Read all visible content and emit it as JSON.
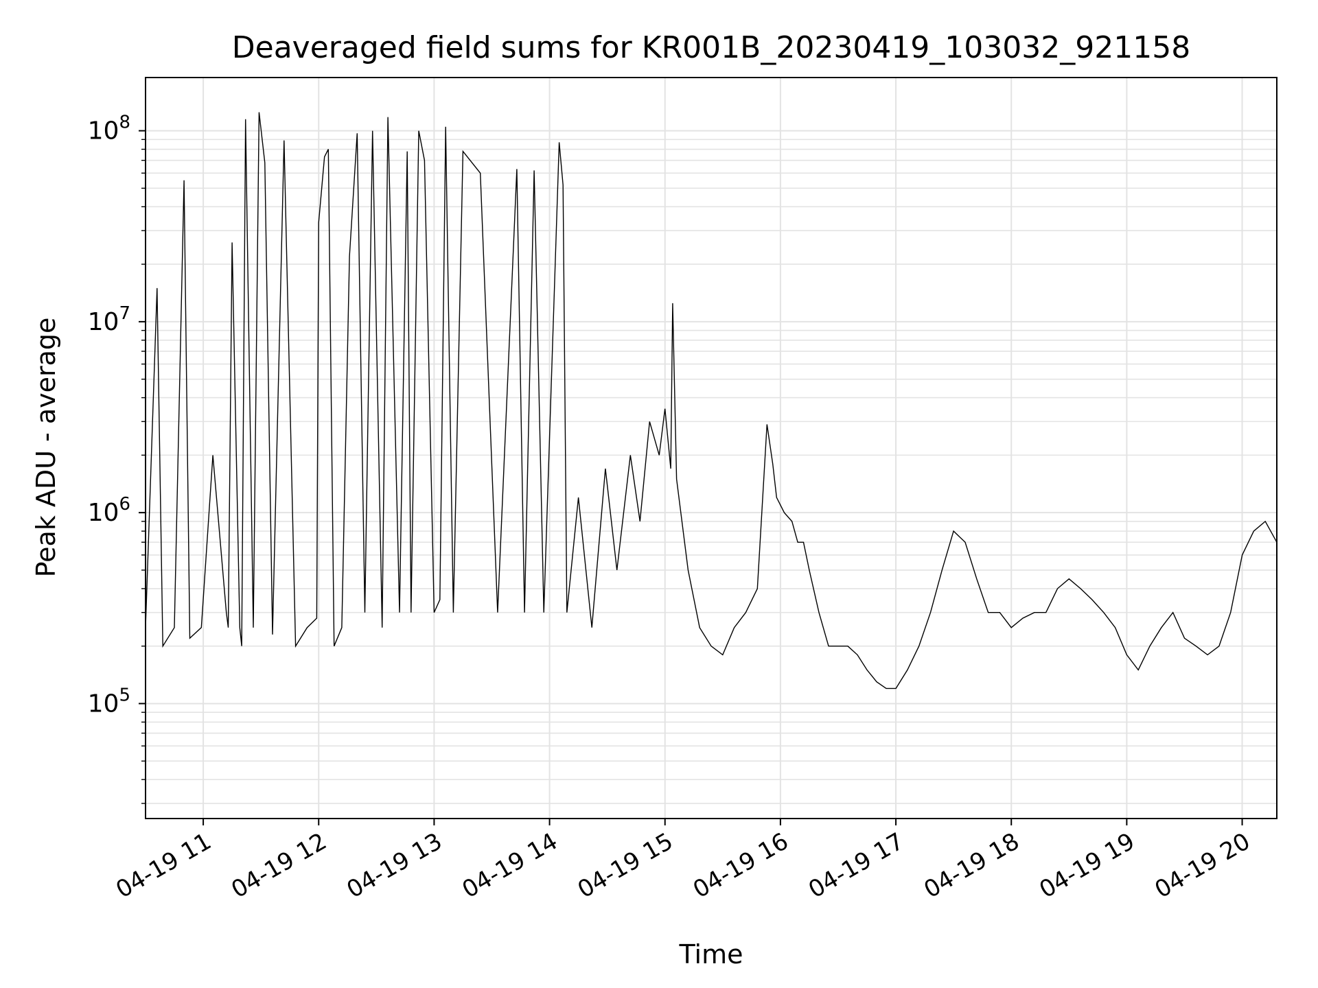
{
  "chart_data": {
    "type": "line",
    "title": "Deaveraged field sums for KR001B_20230419_103032_921158",
    "xlabel": "Time",
    "ylabel": "Peak ADU - average",
    "y_scale": "log",
    "grid": true,
    "legend": "none",
    "xlim": [
      "2023-04-19 10:30",
      "2023-04-19 20:18"
    ],
    "ylim": [
      25000,
      190000000
    ],
    "x_ticks": [
      "04-19 11",
      "04-19 12",
      "04-19 13",
      "04-19 14",
      "04-19 15",
      "04-19 16",
      "04-19 17",
      "04-19 18",
      "04-19 19",
      "04-19 20"
    ],
    "y_ticks": [
      {
        "base": "10",
        "exp": "5"
      },
      {
        "base": "10",
        "exp": "6"
      },
      {
        "base": "10",
        "exp": "7"
      },
      {
        "base": "10",
        "exp": "8"
      }
    ],
    "line_color": "#000000",
    "series": [
      {
        "x": [
          "2023-04-19 10:30",
          "2023-04-19 10:36",
          "2023-04-19 10:39",
          "2023-04-19 10:45",
          "2023-04-19 10:50",
          "2023-04-19 10:53",
          "2023-04-19 10:59",
          "2023-04-19 11:05",
          "2023-04-19 11:12",
          "2023-04-19 11:13",
          "2023-04-19 11:15",
          "2023-04-19 11:19",
          "2023-04-19 11:20",
          "2023-04-19 11:22",
          "2023-04-19 11:26",
          "2023-04-19 11:29",
          "2023-04-19 11:32",
          "2023-04-19 11:36",
          "2023-04-19 11:42",
          "2023-04-19 11:48",
          "2023-04-19 11:54",
          "2023-04-19 11:59",
          "2023-04-19 12:00",
          "2023-04-19 12:03",
          "2023-04-19 12:05",
          "2023-04-19 12:08",
          "2023-04-19 12:12",
          "2023-04-19 12:16",
          "2023-04-19 12:20",
          "2023-04-19 12:24",
          "2023-04-19 12:28",
          "2023-04-19 12:33",
          "2023-04-19 12:36",
          "2023-04-19 12:42",
          "2023-04-19 12:46",
          "2023-04-19 12:48",
          "2023-04-19 12:52",
          "2023-04-19 12:55",
          "2023-04-19 13:00",
          "2023-04-19 13:03",
          "2023-04-19 13:06",
          "2023-04-19 13:10",
          "2023-04-19 13:15",
          "2023-04-19 13:24",
          "2023-04-19 13:33",
          "2023-04-19 13:43",
          "2023-04-19 13:47",
          "2023-04-19 13:52",
          "2023-04-19 13:57",
          "2023-04-19 14:05",
          "2023-04-19 14:07",
          "2023-04-19 14:09",
          "2023-04-19 14:15",
          "2023-04-19 14:22",
          "2023-04-19 14:29",
          "2023-04-19 14:35",
          "2023-04-19 14:42",
          "2023-04-19 14:47",
          "2023-04-19 14:52",
          "2023-04-19 14:57",
          "2023-04-19 15:00",
          "2023-04-19 15:03",
          "2023-04-19 15:04",
          "2023-04-19 15:06",
          "2023-04-19 15:12",
          "2023-04-19 15:18",
          "2023-04-19 15:24",
          "2023-04-19 15:30",
          "2023-04-19 15:36",
          "2023-04-19 15:42",
          "2023-04-19 15:48",
          "2023-04-19 15:53",
          "2023-04-19 15:56",
          "2023-04-19 15:58",
          "2023-04-19 16:02",
          "2023-04-19 16:06",
          "2023-04-19 16:09",
          "2023-04-19 16:12",
          "2023-04-19 16:15",
          "2023-04-19 16:20",
          "2023-04-19 16:25",
          "2023-04-19 16:30",
          "2023-04-19 16:35",
          "2023-04-19 16:40",
          "2023-04-19 16:45",
          "2023-04-19 16:50",
          "2023-04-19 16:55",
          "2023-04-19 17:00",
          "2023-04-19 17:06",
          "2023-04-19 17:12",
          "2023-04-19 17:18",
          "2023-04-19 17:24",
          "2023-04-19 17:30",
          "2023-04-19 17:36",
          "2023-04-19 17:42",
          "2023-04-19 17:48",
          "2023-04-19 17:54",
          "2023-04-19 18:00",
          "2023-04-19 18:06",
          "2023-04-19 18:12",
          "2023-04-19 18:18",
          "2023-04-19 18:24",
          "2023-04-19 18:30",
          "2023-04-19 18:36",
          "2023-04-19 18:42",
          "2023-04-19 18:48",
          "2023-04-19 18:54",
          "2023-04-19 19:00",
          "2023-04-19 19:06",
          "2023-04-19 19:12",
          "2023-04-19 19:18",
          "2023-04-19 19:24",
          "2023-04-19 19:30",
          "2023-04-19 19:36",
          "2023-04-19 19:42",
          "2023-04-19 19:48",
          "2023-04-19 19:54",
          "2023-04-19 20:00",
          "2023-04-19 20:06",
          "2023-04-19 20:12",
          "2023-04-19 20:18"
        ],
        "y": [
          250000,
          15000000,
          200000,
          250000,
          55000000,
          220000,
          250000,
          2000000,
          300000,
          250000,
          26000000,
          250000,
          200000,
          115000000,
          250000,
          125000000,
          68000000,
          230000,
          89000000,
          200000,
          250000,
          280000,
          33000000,
          73000000,
          80000000,
          200000,
          250000,
          22000000,
          97000000,
          300000,
          100000000,
          250000,
          118000000,
          300000,
          78000000,
          300000,
          100000000,
          70000000,
          300000,
          350000,
          105000000,
          300000,
          78000000,
          60000000,
          300000,
          63000000,
          300000,
          62000000,
          300000,
          87000000,
          52000000,
          300000,
          1200000,
          250000,
          1700000,
          500000,
          2000000,
          900000,
          3000000,
          2000000,
          3500000,
          1700000,
          12500000,
          1500000,
          500000,
          250000,
          200000,
          180000,
          250000,
          300000,
          400000,
          2900000,
          1800000,
          1200000,
          1000000,
          900000,
          700000,
          700000,
          500000,
          300000,
          200000,
          200000,
          200000,
          180000,
          150000,
          130000,
          120000,
          120000,
          150000,
          200000,
          300000,
          500000,
          800000,
          700000,
          450000,
          300000,
          300000,
          250000,
          280000,
          300000,
          300000,
          400000,
          450000,
          400000,
          350000,
          300000,
          250000,
          180000,
          150000,
          200000,
          250000,
          300000,
          220000,
          200000,
          180000,
          200000,
          300000,
          600000,
          800000,
          900000,
          700000
        ]
      }
    ]
  }
}
